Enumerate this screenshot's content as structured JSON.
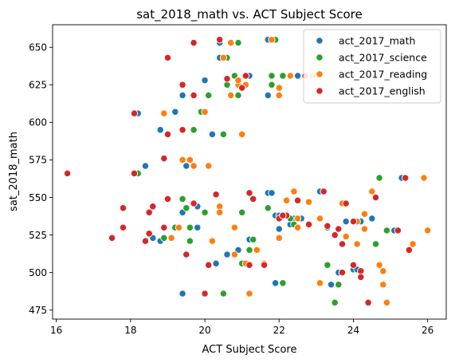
{
  "chart_data": {
    "type": "scatter",
    "title": "sat_2018_math vs. ACT Subject Score",
    "xlabel": "ACT Subject Score",
    "ylabel": "sat_2018_math",
    "xlim": [
      15.9,
      26.5
    ],
    "ylim": [
      469,
      665
    ],
    "xticks": [
      16,
      18,
      20,
      22,
      24,
      26
    ],
    "yticks": [
      475,
      500,
      525,
      550,
      575,
      600,
      625,
      650
    ],
    "grid": false,
    "legend_position": "top-right",
    "series": [
      {
        "name": "act_2017_math",
        "color": "#1f77b4",
        "points": [
          [
            18.1,
            566
          ],
          [
            18.2,
            606
          ],
          [
            18.4,
            571
          ],
          [
            18.6,
            523
          ],
          [
            18.8,
            595
          ],
          [
            18.8,
            521
          ],
          [
            19.2,
            607
          ],
          [
            19.4,
            486
          ],
          [
            19.4,
            618
          ],
          [
            19.4,
            540
          ],
          [
            19.5,
            571
          ],
          [
            19.8,
            544
          ],
          [
            19.8,
            530
          ],
          [
            20.0,
            628
          ],
          [
            20.2,
            592
          ],
          [
            20.3,
            506
          ],
          [
            20.4,
            653
          ],
          [
            20.4,
            643
          ],
          [
            20.6,
            512
          ],
          [
            20.9,
            515
          ],
          [
            21.2,
            631
          ],
          [
            21.2,
            522
          ],
          [
            21.7,
            655
          ],
          [
            21.7,
            553
          ],
          [
            21.7,
            618
          ],
          [
            21.8,
            553
          ],
          [
            21.9,
            493
          ],
          [
            21.9,
            538
          ],
          [
            22.0,
            536
          ],
          [
            22.0,
            529
          ],
          [
            22.0,
            538
          ],
          [
            22.3,
            532
          ],
          [
            22.4,
            536
          ],
          [
            22.5,
            631
          ],
          [
            22.6,
            536
          ],
          [
            23.1,
            554
          ],
          [
            23.1,
            536
          ],
          [
            23.3,
            505
          ],
          [
            23.4,
            492
          ],
          [
            23.6,
            500
          ],
          [
            23.8,
            534
          ],
          [
            24.0,
            502
          ],
          [
            24.1,
            502
          ],
          [
            24.2,
            534
          ],
          [
            24.5,
            536
          ],
          [
            24.9,
            528
          ],
          [
            25.3,
            563
          ],
          [
            25.1,
            528
          ]
        ]
      },
      {
        "name": "act_2017_science",
        "color": "#2ca02c",
        "points": [
          [
            18.2,
            566
          ],
          [
            18.9,
            523
          ],
          [
            19.2,
            530
          ],
          [
            19.4,
            549
          ],
          [
            19.4,
            575
          ],
          [
            19.5,
            543
          ],
          [
            19.6,
            530
          ],
          [
            19.6,
            521
          ],
          [
            19.7,
            595
          ],
          [
            19.7,
            571
          ],
          [
            19.9,
            607
          ],
          [
            20.0,
            540
          ],
          [
            20.1,
            618
          ],
          [
            20.5,
            592
          ],
          [
            20.5,
            486
          ],
          [
            20.6,
            643
          ],
          [
            20.6,
            625
          ],
          [
            20.8,
            631
          ],
          [
            20.9,
            653
          ],
          [
            20.9,
            618
          ],
          [
            21.0,
            506
          ],
          [
            21.0,
            540
          ],
          [
            21.2,
            515
          ],
          [
            21.3,
            522
          ],
          [
            21.7,
            543
          ],
          [
            21.8,
            631
          ],
          [
            21.8,
            625
          ],
          [
            21.9,
            655
          ],
          [
            22.0,
            618
          ],
          [
            22.1,
            631
          ],
          [
            22.1,
            493
          ],
          [
            22.1,
            538
          ],
          [
            22.3,
            536
          ],
          [
            22.5,
            530
          ],
          [
            23.3,
            505
          ],
          [
            23.3,
            530
          ],
          [
            23.5,
            480
          ],
          [
            23.6,
            492
          ],
          [
            23.7,
            500
          ],
          [
            24.0,
            534
          ],
          [
            24.6,
            519
          ],
          [
            24.7,
            563
          ],
          [
            24.9,
            528
          ],
          [
            23.2,
            554
          ],
          [
            22.4,
            532
          ]
        ]
      },
      {
        "name": "act_2017_reading",
        "color": "#ff7f0e",
        "points": [
          [
            18.1,
            566
          ],
          [
            18.9,
            606
          ],
          [
            19.1,
            523
          ],
          [
            19.3,
            530
          ],
          [
            19.4,
            575
          ],
          [
            19.6,
            575
          ],
          [
            19.7,
            571
          ],
          [
            20.0,
            607
          ],
          [
            20.1,
            571
          ],
          [
            20.2,
            521
          ],
          [
            20.4,
            544
          ],
          [
            20.4,
            540
          ],
          [
            20.5,
            643
          ],
          [
            20.7,
            618
          ],
          [
            20.7,
            653
          ],
          [
            20.8,
            530
          ],
          [
            20.8,
            512
          ],
          [
            20.9,
            625
          ],
          [
            20.9,
            628
          ],
          [
            21.1,
            625
          ],
          [
            21.1,
            506
          ],
          [
            21.2,
            486
          ],
          [
            21.4,
            515
          ],
          [
            21.6,
            506
          ],
          [
            21.8,
            655
          ],
          [
            22.0,
            523
          ],
          [
            22.0,
            623
          ],
          [
            22.2,
            548
          ],
          [
            22.3,
            631
          ],
          [
            22.4,
            554
          ],
          [
            22.5,
            530
          ],
          [
            22.5,
            536
          ],
          [
            22.9,
            631
          ],
          [
            22.8,
            547
          ],
          [
            23.1,
            493
          ],
          [
            23.1,
            536
          ],
          [
            23.7,
            546
          ],
          [
            23.8,
            524
          ],
          [
            24.1,
            534
          ],
          [
            24.1,
            519
          ],
          [
            24.3,
            529
          ],
          [
            24.3,
            539
          ],
          [
            24.5,
            554
          ],
          [
            24.7,
            505
          ],
          [
            24.8,
            492
          ],
          [
            24.8,
            501
          ],
          [
            24.9,
            480
          ],
          [
            25.6,
            519
          ],
          [
            25.9,
            563
          ],
          [
            26.0,
            528
          ],
          [
            22.0,
            618
          ],
          [
            21.0,
            592
          ]
        ]
      },
      {
        "name": "act_2017_english",
        "color": "#d62728",
        "points": [
          [
            16.3,
            566
          ],
          [
            17.5,
            523
          ],
          [
            17.8,
            530
          ],
          [
            17.8,
            543
          ],
          [
            18.1,
            606
          ],
          [
            18.1,
            566
          ],
          [
            18.4,
            521
          ],
          [
            18.5,
            526
          ],
          [
            18.5,
            540
          ],
          [
            18.6,
            544
          ],
          [
            18.9,
            576
          ],
          [
            18.9,
            530
          ],
          [
            19.0,
            643
          ],
          [
            19.0,
            592
          ],
          [
            19.0,
            549
          ],
          [
            19.4,
            625
          ],
          [
            19.4,
            595
          ],
          [
            19.5,
            512
          ],
          [
            19.7,
            653
          ],
          [
            19.7,
            618
          ],
          [
            19.7,
            546
          ],
          [
            20.0,
            486
          ],
          [
            20.1,
            505
          ],
          [
            20.4,
            655
          ],
          [
            20.3,
            552
          ],
          [
            20.6,
            629
          ],
          [
            21.0,
            623
          ],
          [
            21.1,
            631
          ],
          [
            21.2,
            553
          ],
          [
            21.3,
            549
          ],
          [
            21.2,
            505
          ],
          [
            21.6,
            505
          ],
          [
            22.0,
            536
          ],
          [
            22.2,
            538
          ],
          [
            22.5,
            548
          ],
          [
            22.8,
            532
          ],
          [
            23.2,
            554
          ],
          [
            23.5,
            525
          ],
          [
            23.6,
            529
          ],
          [
            23.7,
            519
          ],
          [
            23.7,
            500
          ],
          [
            23.8,
            546
          ],
          [
            24.0,
            534
          ],
          [
            24.0,
            505
          ],
          [
            24.2,
            501
          ],
          [
            24.4,
            480
          ],
          [
            24.6,
            550
          ],
          [
            25.2,
            528
          ],
          [
            25.4,
            563
          ],
          [
            25.5,
            515
          ],
          [
            22.1,
            538
          ],
          [
            23.3,
            531
          ],
          [
            22.7,
            631
          ],
          [
            24.2,
            497
          ]
        ]
      }
    ]
  }
}
